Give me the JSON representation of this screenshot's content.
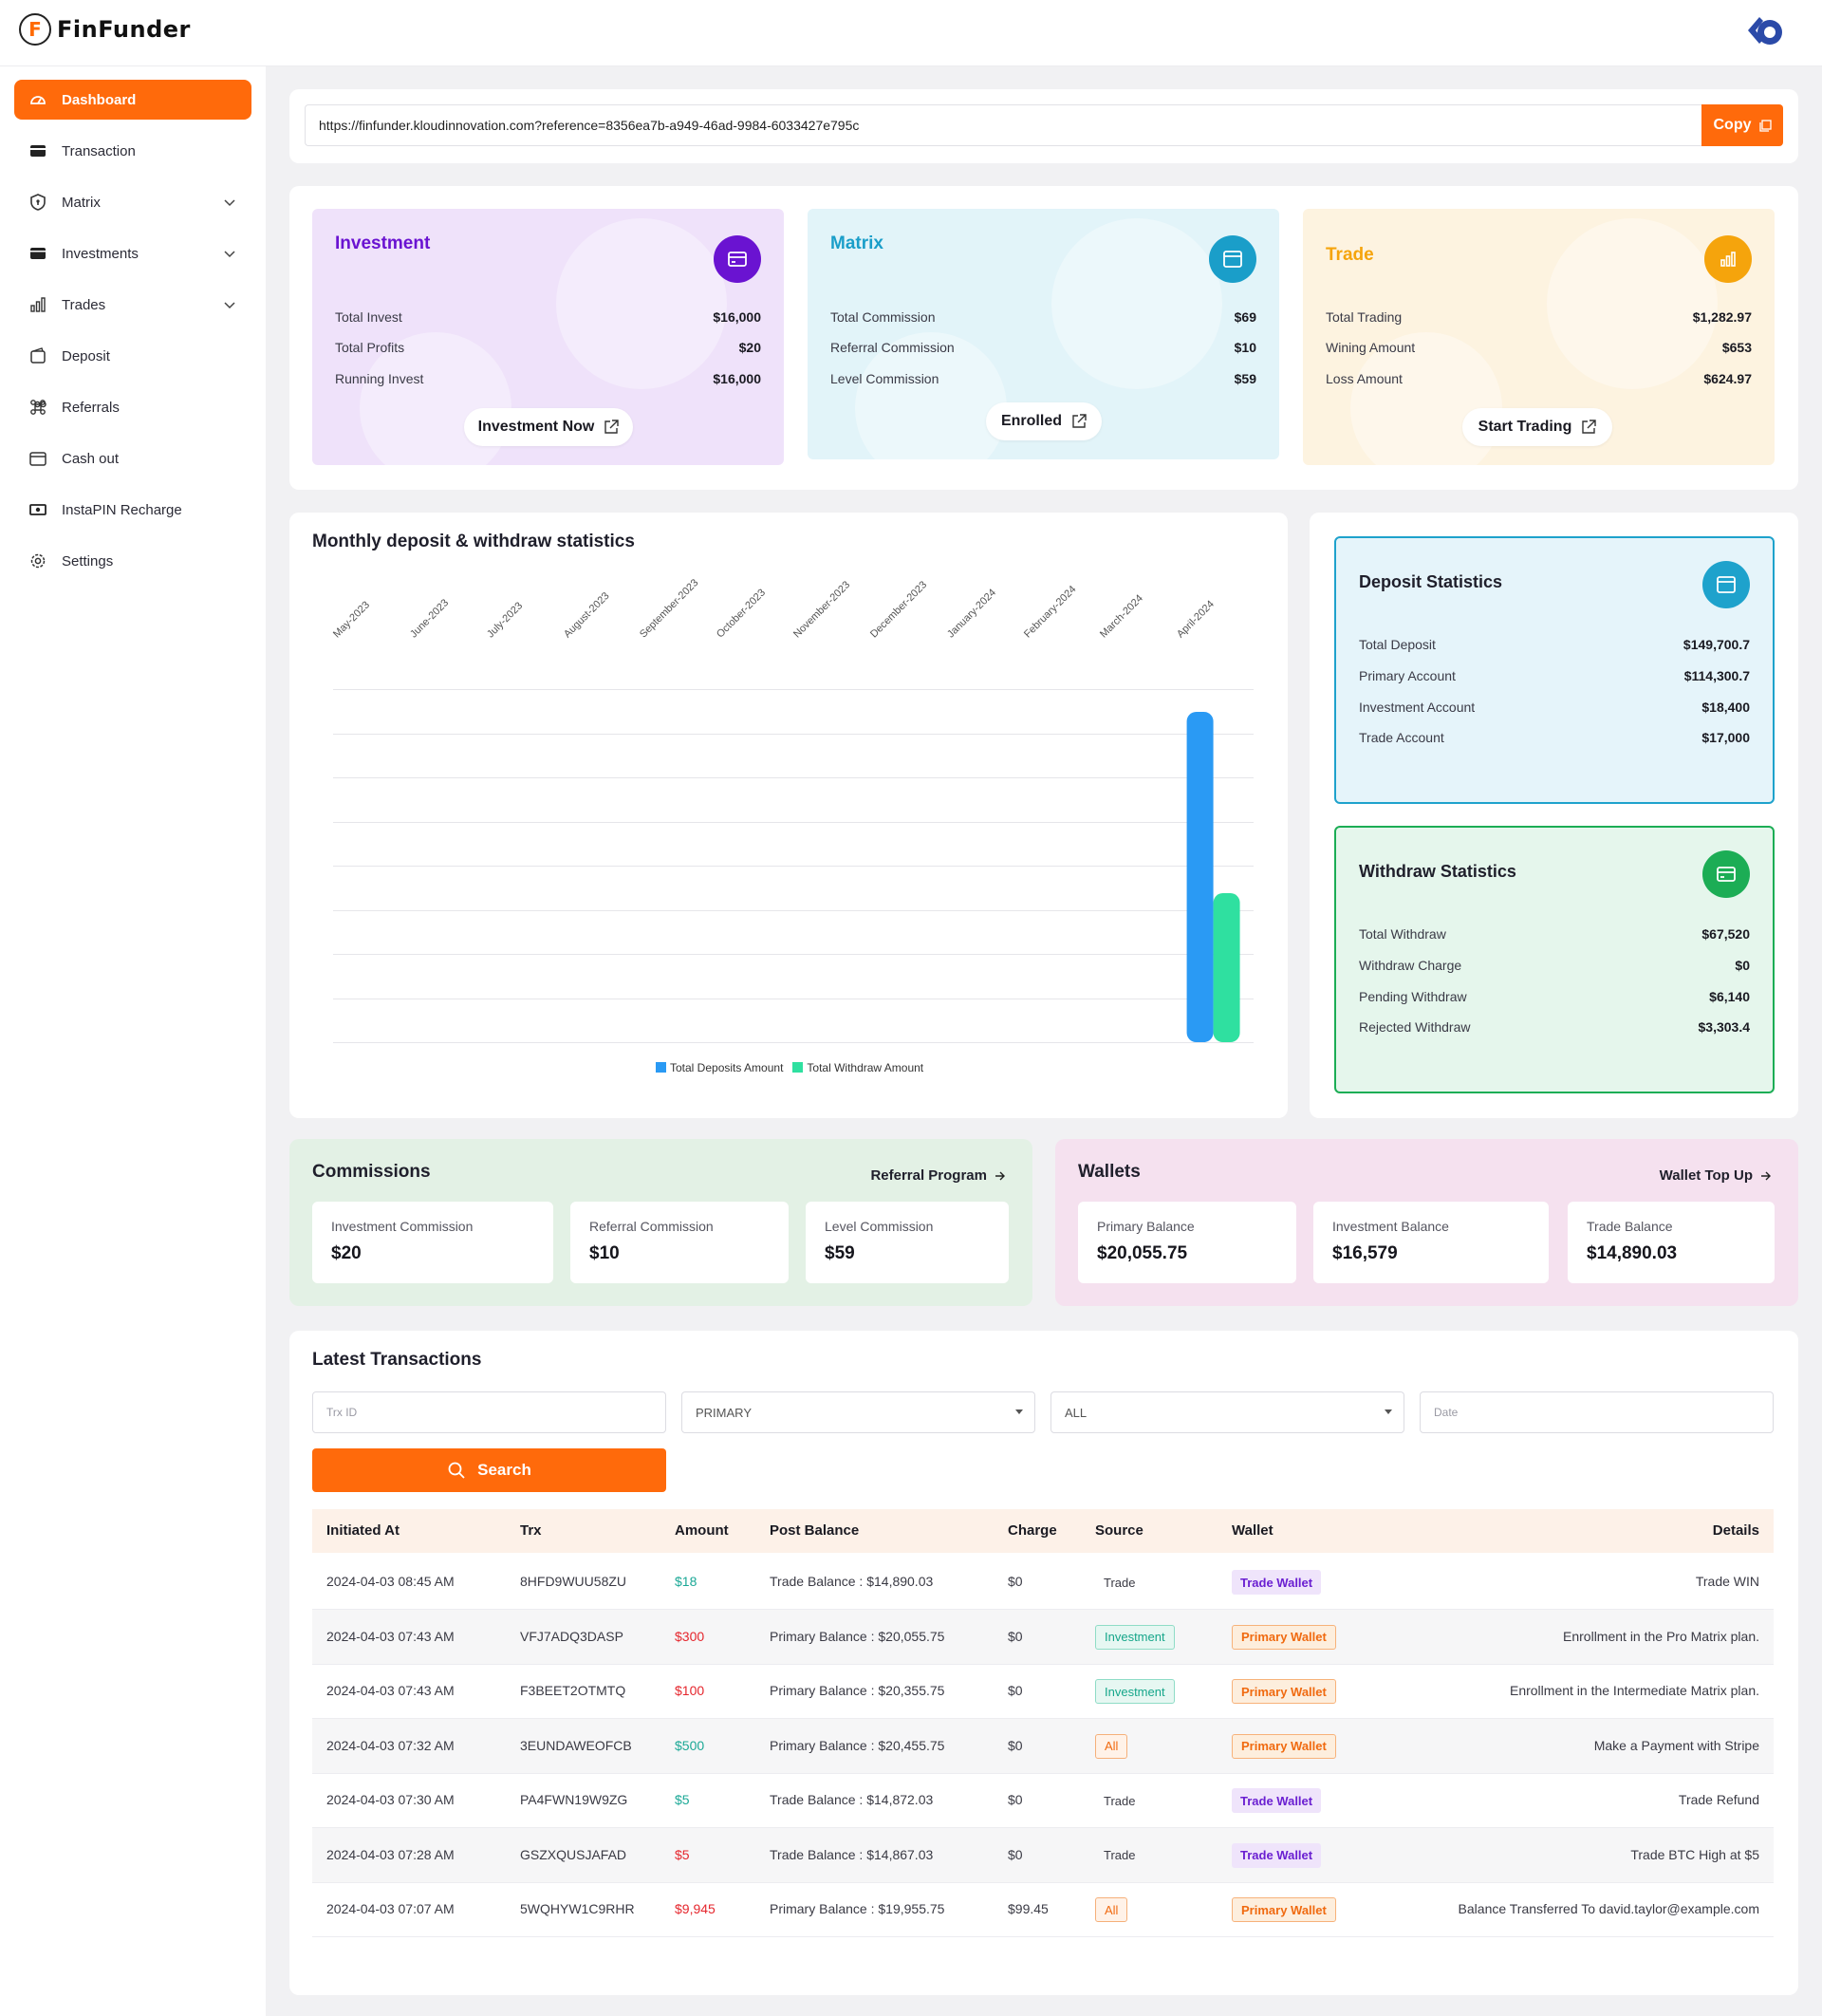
{
  "app": {
    "logo_letter": "F",
    "name": "FinFunder"
  },
  "sidebar": {
    "items": [
      {
        "label": "Dashboard",
        "icon": "dashboard-icon",
        "active": true
      },
      {
        "label": "Transaction",
        "icon": "card-icon"
      },
      {
        "label": "Matrix",
        "icon": "shield-icon",
        "expandable": true
      },
      {
        "label": "Investments",
        "icon": "wallet-icon",
        "expandable": true
      },
      {
        "label": "Trades",
        "icon": "bar-chart-icon",
        "expandable": true
      },
      {
        "label": "Deposit",
        "icon": "deposit-icon"
      },
      {
        "label": "Referrals",
        "icon": "command-icon"
      },
      {
        "label": "Cash out",
        "icon": "cashout-icon"
      },
      {
        "label": "InstaPIN Recharge",
        "icon": "recharge-icon"
      },
      {
        "label": "Settings",
        "icon": "gear-icon"
      }
    ]
  },
  "referral": {
    "url": "https://finfunder.kloudinnovation.com?reference=8356ea7b-a949-46ad-9984-6033427e795c",
    "copy_label": "Copy"
  },
  "summary": {
    "investment": {
      "title": "Investment",
      "rows": [
        {
          "label": "Total Invest",
          "value": "$16,000"
        },
        {
          "label": "Total Profits",
          "value": "$20"
        },
        {
          "label": "Running Invest",
          "value": "$16,000"
        }
      ],
      "button": "Investment Now",
      "color": "#6a13d1"
    },
    "matrix": {
      "title": "Matrix",
      "rows": [
        {
          "label": "Total Commission",
          "value": "$69"
        },
        {
          "label": "Referral Commission",
          "value": "$10"
        },
        {
          "label": "Level Commission",
          "value": "$59"
        }
      ],
      "button": "Enrolled",
      "color": "#1a9ec9"
    },
    "trade": {
      "title": "Trade",
      "rows": [
        {
          "label": "Total Trading",
          "value": "$1,282.97"
        },
        {
          "label": "Wining Amount",
          "value": "$653"
        },
        {
          "label": "Loss Amount",
          "value": "$624.97"
        }
      ],
      "button": "Start Trading",
      "color": "#f5a40c"
    }
  },
  "chart_data": {
    "type": "bar",
    "title": "Monthly deposit & withdraw statistics",
    "categories": [
      "May-2023",
      "June-2023",
      "July-2023",
      "August-2023",
      "September-2023",
      "October-2023",
      "November-2023",
      "December-2023",
      "January-2024",
      "February-2024",
      "March-2024",
      "April-2024"
    ],
    "series": [
      {
        "name": "Total Deposits Amount",
        "color": "#2a9af4",
        "values": [
          0,
          0,
          0,
          0,
          0,
          0,
          0,
          0,
          0,
          0,
          0,
          149700.7
        ]
      },
      {
        "name": "Total Withdraw Amount",
        "color": "#2fe0a0",
        "values": [
          0,
          0,
          0,
          0,
          0,
          0,
          0,
          0,
          0,
          0,
          0,
          67520
        ]
      }
    ],
    "ylim": [
      0,
      160000
    ],
    "grid": true,
    "legend": "bottom"
  },
  "deposit_stats": {
    "title": "Deposit Statistics",
    "rows": [
      {
        "label": "Total Deposit",
        "value": "$149,700.7"
      },
      {
        "label": "Primary Account",
        "value": "$114,300.7"
      },
      {
        "label": "Investment Account",
        "value": "$18,400"
      },
      {
        "label": "Trade Account",
        "value": "$17,000"
      }
    ]
  },
  "withdraw_stats": {
    "title": "Withdraw Statistics",
    "rows": [
      {
        "label": "Total Withdraw",
        "value": "$67,520"
      },
      {
        "label": "Withdraw Charge",
        "value": "$0"
      },
      {
        "label": "Pending Withdraw",
        "value": "$6,140"
      },
      {
        "label": "Rejected Withdraw",
        "value": "$3,303.4"
      }
    ]
  },
  "commissions": {
    "title": "Commissions",
    "link": "Referral Program",
    "items": [
      {
        "label": "Investment Commission",
        "value": "$20"
      },
      {
        "label": "Referral Commission",
        "value": "$10"
      },
      {
        "label": "Level Commission",
        "value": "$59"
      }
    ]
  },
  "wallets": {
    "title": "Wallets",
    "link": "Wallet Top Up",
    "items": [
      {
        "label": "Primary Balance",
        "value": "$20,055.75"
      },
      {
        "label": "Investment Balance",
        "value": "$16,579"
      },
      {
        "label": "Trade Balance",
        "value": "$14,890.03"
      }
    ]
  },
  "transactions": {
    "title": "Latest Transactions",
    "filters": {
      "trx_placeholder": "Trx ID",
      "wallet_value": "PRIMARY",
      "type_value": "ALL",
      "date_placeholder": "Date",
      "search_label": "Search"
    },
    "columns": [
      "Initiated At",
      "Trx",
      "Amount",
      "Post Balance",
      "Charge",
      "Source",
      "Wallet",
      "Details"
    ],
    "rows": [
      {
        "date": "2024-04-03 08:45 AM",
        "trx": "8HFD9WUU58ZU",
        "amount": "$18",
        "amount_type": "credit",
        "post": "Trade Balance : $14,890.03",
        "charge": "$0",
        "source": "Trade",
        "source_type": "plain",
        "wallet": "Trade Wallet",
        "wallet_type": "trade",
        "details": "Trade WIN"
      },
      {
        "date": "2024-04-03 07:43 AM",
        "trx": "VFJ7ADQ3DASP",
        "amount": "$300",
        "amount_type": "debit",
        "post": "Primary Balance : $20,055.75",
        "charge": "$0",
        "source": "Investment",
        "source_type": "inv",
        "wallet": "Primary Wallet",
        "wallet_type": "primary",
        "details": "Enrollment in the Pro Matrix plan."
      },
      {
        "date": "2024-04-03 07:43 AM",
        "trx": "F3BEET2OTMTQ",
        "amount": "$100",
        "amount_type": "debit",
        "post": "Primary Balance : $20,355.75",
        "charge": "$0",
        "source": "Investment",
        "source_type": "inv",
        "wallet": "Primary Wallet",
        "wallet_type": "primary",
        "details": "Enrollment in the Intermediate Matrix plan."
      },
      {
        "date": "2024-04-03 07:32 AM",
        "trx": "3EUNDAWEOFCB",
        "amount": "$500",
        "amount_type": "credit",
        "post": "Primary Balance : $20,455.75",
        "charge": "$0",
        "source": "All",
        "source_type": "all",
        "wallet": "Primary Wallet",
        "wallet_type": "primary",
        "details": "Make a Payment with Stripe"
      },
      {
        "date": "2024-04-03 07:30 AM",
        "trx": "PA4FWN19W9ZG",
        "amount": "$5",
        "amount_type": "credit",
        "post": "Trade Balance : $14,872.03",
        "charge": "$0",
        "source": "Trade",
        "source_type": "plain",
        "wallet": "Trade Wallet",
        "wallet_type": "trade",
        "details": "Trade Refund"
      },
      {
        "date": "2024-04-03 07:28 AM",
        "trx": "GSZXQUSJAFAD",
        "amount": "$5",
        "amount_type": "debit",
        "post": "Trade Balance : $14,867.03",
        "charge": "$0",
        "source": "Trade",
        "source_type": "plain",
        "wallet": "Trade Wallet",
        "wallet_type": "trade",
        "details": "Trade BTC High at $5"
      },
      {
        "date": "2024-04-03 07:07 AM",
        "trx": "5WQHYW1C9RHR",
        "amount": "$9,945",
        "amount_type": "debit",
        "post": "Primary Balance : $19,955.75",
        "charge": "$99.45",
        "source": "All",
        "source_type": "all",
        "wallet": "Primary Wallet",
        "wallet_type": "primary",
        "details": "Balance Transferred To david.taylor@example.com"
      }
    ]
  }
}
